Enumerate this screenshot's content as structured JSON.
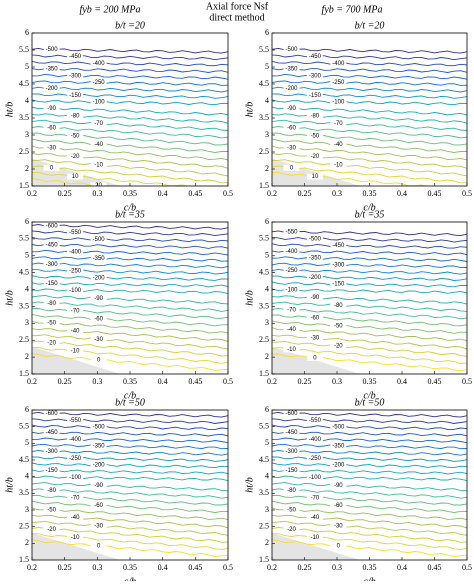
{
  "header": {
    "left": "fyb = 200 MPa",
    "center_1": "Axial force Nsf",
    "center_2": "direct method",
    "right": "fyb = 700 MPa"
  },
  "chart_data": [
    {
      "type": "contour",
      "title": "b/t =20",
      "xlabel": "c/b",
      "ylabel": "ht/b",
      "xlim": [
        0.2,
        0.5
      ],
      "ylim": [
        1.5,
        6
      ],
      "xticks": [
        0.2,
        0.25,
        0.3,
        0.35,
        0.4,
        0.45,
        0.5
      ],
      "yticks": [
        1.5,
        2,
        2.5,
        3,
        3.5,
        4,
        4.5,
        5,
        5.5,
        6
      ],
      "levels": [
        -500,
        -450,
        -400,
        -350,
        -300,
        -250,
        -200,
        -150,
        -100,
        -90,
        -80,
        -70,
        -60,
        -50,
        -40,
        -30,
        -20,
        -10,
        0,
        10,
        20
      ]
    },
    {
      "type": "contour",
      "title": "b/t =20",
      "xlabel": "c/b",
      "ylabel": "ht/b",
      "xlim": [
        0.2,
        0.5
      ],
      "ylim": [
        1.5,
        6
      ],
      "xticks": [
        0.2,
        0.25,
        0.3,
        0.35,
        0.4,
        0.45,
        0.5
      ],
      "yticks": [
        1.5,
        2,
        2.5,
        3,
        3.5,
        4,
        4.5,
        5,
        5.5,
        6
      ],
      "levels": [
        -500,
        -450,
        -400,
        -350,
        -300,
        -250,
        -200,
        -150,
        -100,
        -90,
        -80,
        -70,
        -60,
        -50,
        -40,
        -30,
        -20,
        -10,
        0,
        10
      ]
    },
    {
      "type": "contour",
      "title": "b/t =35",
      "xlabel": "c/b",
      "ylabel": "ht/b",
      "xlim": [
        0.2,
        0.5
      ],
      "ylim": [
        1.5,
        6
      ],
      "xticks": [
        0.2,
        0.25,
        0.3,
        0.35,
        0.4,
        0.45,
        0.5
      ],
      "yticks": [
        1.5,
        2,
        2.5,
        3,
        3.5,
        4,
        4.5,
        5,
        5.5,
        6
      ],
      "levels": [
        -600,
        -550,
        -500,
        -450,
        -400,
        -350,
        -300,
        -250,
        -200,
        -150,
        -100,
        -90,
        -80,
        -70,
        -60,
        -50,
        -40,
        -30,
        -20,
        -10,
        0
      ]
    },
    {
      "type": "contour",
      "title": "b/t =35",
      "xlabel": "c/b",
      "ylabel": "ht/b",
      "xlim": [
        0.2,
        0.5
      ],
      "ylim": [
        1.5,
        6
      ],
      "xticks": [
        0.2,
        0.25,
        0.3,
        0.35,
        0.4,
        0.45,
        0.5
      ],
      "yticks": [
        1.5,
        2,
        2.5,
        3,
        3.5,
        4,
        4.5,
        5,
        5.5,
        6
      ],
      "levels": [
        -550,
        -500,
        -450,
        -400,
        -350,
        -300,
        -250,
        -200,
        -150,
        -100,
        -90,
        -80,
        -70,
        -60,
        -50,
        -40,
        -30,
        -20,
        -10,
        0
      ]
    },
    {
      "type": "contour",
      "title": "b/t =50",
      "xlabel": "c/b",
      "ylabel": "ht/b",
      "xlim": [
        0.2,
        0.5
      ],
      "ylim": [
        1.5,
        6
      ],
      "xticks": [
        0.2,
        0.25,
        0.3,
        0.35,
        0.4,
        0.45,
        0.5
      ],
      "yticks": [
        1.5,
        2,
        2.5,
        3,
        3.5,
        4,
        4.5,
        5,
        5.5,
        6
      ],
      "levels": [
        -600,
        -550,
        -500,
        -450,
        -400,
        -350,
        -300,
        -250,
        -200,
        -150,
        -100,
        -90,
        -80,
        -70,
        -60,
        -50,
        -40,
        -30,
        -20,
        -10,
        0
      ]
    },
    {
      "type": "contour",
      "title": "b/t =50",
      "xlabel": "c/b",
      "ylabel": "ht/b",
      "xlim": [
        0.2,
        0.5
      ],
      "ylim": [
        1.5,
        6
      ],
      "xticks": [
        0.2,
        0.25,
        0.3,
        0.35,
        0.4,
        0.45,
        0.5
      ],
      "yticks": [
        1.5,
        2,
        2.5,
        3,
        3.5,
        4,
        4.5,
        5,
        5.5,
        6
      ],
      "levels": [
        -600,
        -550,
        -500,
        -450,
        -400,
        -350,
        -300,
        -250,
        -200,
        -150,
        -100,
        -90,
        -80,
        -70,
        -60,
        -50,
        -40,
        -30,
        -20,
        -10,
        0
      ]
    }
  ]
}
